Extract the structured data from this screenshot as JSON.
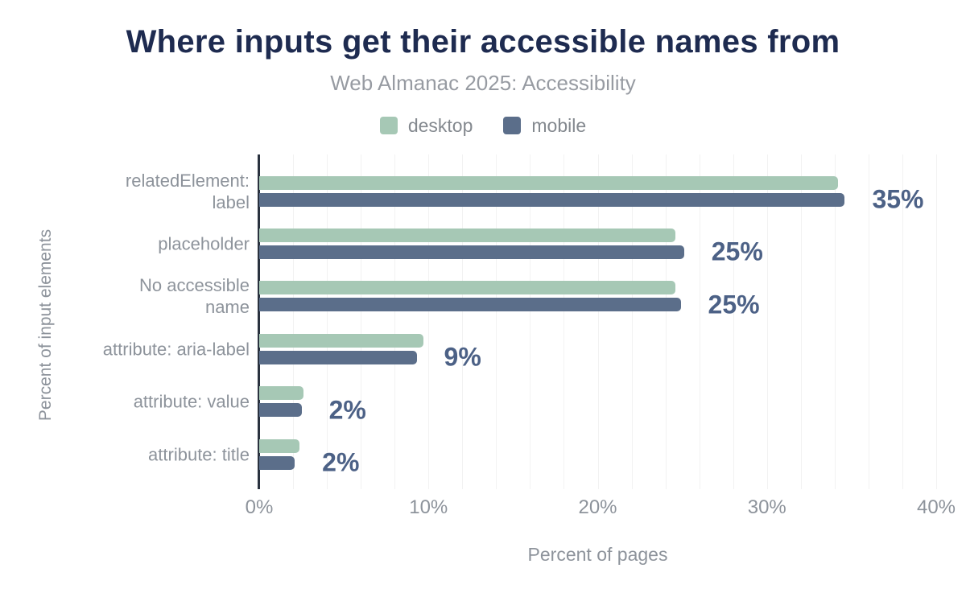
{
  "header": {
    "title": "Where inputs get their accessible names from",
    "subtitle": "Web Almanac 2025: Accessibility"
  },
  "legend": {
    "items": [
      {
        "label": "desktop",
        "color": "#a6c8b5"
      },
      {
        "label": "mobile",
        "color": "#5b6e8a"
      }
    ]
  },
  "chart_data": {
    "type": "bar",
    "orientation": "horizontal",
    "title": "Where inputs get their accessible names from",
    "subtitle": "Web Almanac 2025: Accessibility",
    "categories": [
      "relatedElement:\nlabel",
      "placeholder",
      "No accessible\nname",
      "attribute: aria-label",
      "attribute: value",
      "attribute: title"
    ],
    "series": [
      {
        "name": "desktop",
        "color": "#a6c8b5",
        "values": [
          34.2,
          24.6,
          24.6,
          9.7,
          2.6,
          2.4
        ]
      },
      {
        "name": "mobile",
        "color": "#5b6e8a",
        "values": [
          34.6,
          25.1,
          24.9,
          9.3,
          2.5,
          2.1
        ]
      }
    ],
    "annotations": [
      "35%",
      "25%",
      "25%",
      "9%",
      "2%",
      "2%"
    ],
    "xlabel": "Percent of pages",
    "ylabel": "Percent of input elements",
    "xlim": [
      0,
      40
    ],
    "xticks": [
      {
        "value": 0,
        "label": "0%"
      },
      {
        "value": 10,
        "label": "10%"
      },
      {
        "value": 20,
        "label": "20%"
      },
      {
        "value": 30,
        "label": "30%"
      },
      {
        "value": 40,
        "label": "40%"
      }
    ],
    "grid": {
      "step": 2,
      "color": "#f2f2f2",
      "show": true
    },
    "legend_position": "top"
  },
  "colors": {
    "title": "#1e2b50",
    "subtitle": "#979ba2",
    "axis_text": "#8d939b",
    "axis_line": "#2a323f",
    "annotation": "#4c6186",
    "desktop": "#a6c8b5",
    "mobile": "#5b6e8a",
    "gridline": "#f2f2f2",
    "background": "#ffffff"
  }
}
